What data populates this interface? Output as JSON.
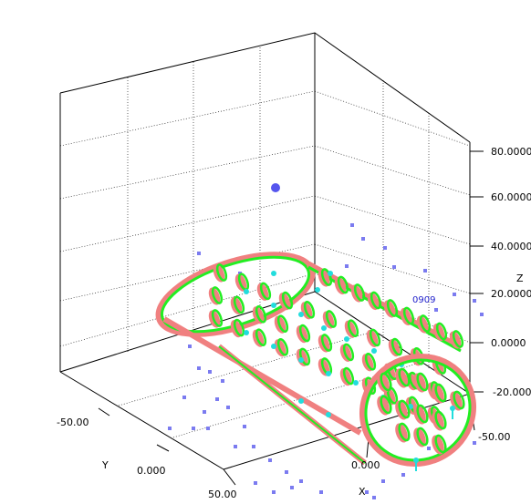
{
  "chart_data": {
    "type": "scatter3d",
    "title": "",
    "axes": {
      "x": {
        "label": "X",
        "ticks": [
          "-50.00",
          "0.000"
        ]
      },
      "y": {
        "label": "Y",
        "ticks": [
          "-50.00",
          "0.000",
          "50.00"
        ]
      },
      "z": {
        "label": "Z",
        "ticks": [
          "80.0000",
          "60.0000",
          "40.0000",
          "20.0000",
          "0.0000",
          "-20.0000"
        ]
      }
    },
    "annotation": "0909",
    "grid": true,
    "legend": "none",
    "colors": {
      "frame": "#000000",
      "grid": "#000000",
      "outer_rings": "#f08080",
      "inner_rings": "#22ee22",
      "markers": "#22dddd",
      "scatter": "#7b7bf0",
      "highlight": "#5555ee"
    }
  }
}
